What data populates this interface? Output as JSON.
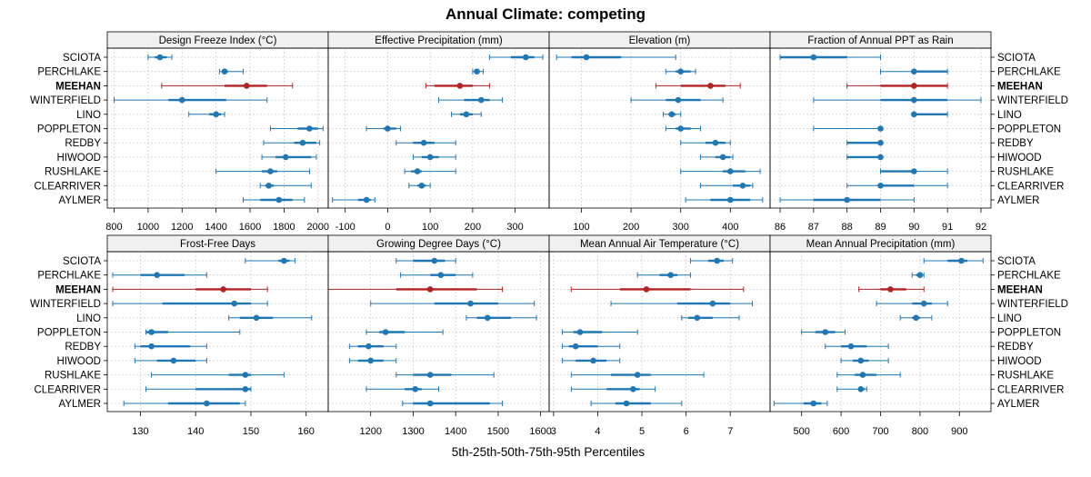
{
  "chart_data": {
    "type": "interval",
    "title": "Annual Climate: competing",
    "xlabel": "5th-25th-50th-75th-95th Percentiles",
    "sites": [
      "SCIOTA",
      "PERCHLAKE",
      "MEEHAN",
      "WINTERFIELD",
      "LINO",
      "POPPLETON",
      "REDBY",
      "HIWOOD",
      "RUSHLAKE",
      "CLEARRIVER",
      "AYLMER"
    ],
    "highlight_site": "MEEHAN",
    "colors": {
      "normal": "#1f77b4",
      "highlight": "#b22222"
    },
    "panels": [
      {
        "title": "Design Freeze Index (°C)",
        "xlim": [
          760,
          2060
        ],
        "ticks": [
          800,
          1000,
          1200,
          1400,
          1600,
          1800,
          2000
        ],
        "tick_labels": [
          "800",
          "1000",
          "1200",
          "1400",
          "1600",
          "1800",
          "2000"
        ],
        "stats": [
          [
            1000,
            1040,
            1070,
            1110,
            1140
          ],
          [
            1420,
            1435,
            1450,
            1470,
            1560
          ],
          [
            1080,
            1450,
            1580,
            1700,
            1850
          ],
          [
            800,
            1120,
            1200,
            1460,
            1700
          ],
          [
            1240,
            1360,
            1400,
            1430,
            1450
          ],
          [
            1720,
            1880,
            1950,
            2000,
            2030
          ],
          [
            1680,
            1860,
            1910,
            1990,
            2010
          ],
          [
            1670,
            1750,
            1810,
            1960,
            1990
          ],
          [
            1400,
            1670,
            1720,
            1760,
            1950
          ],
          [
            1660,
            1690,
            1710,
            1740,
            1960
          ],
          [
            1560,
            1660,
            1770,
            1850,
            1920
          ]
        ]
      },
      {
        "title": "Effective Precipitation (mm)",
        "xlim": [
          -140,
          380
        ],
        "ticks": [
          -100,
          0,
          100,
          200,
          300
        ],
        "tick_labels": [
          "-100",
          "0",
          "100",
          "200",
          "300"
        ],
        "stats": [
          [
            240,
            290,
            325,
            345,
            365
          ],
          [
            200,
            205,
            210,
            215,
            225
          ],
          [
            90,
            110,
            170,
            200,
            240
          ],
          [
            120,
            180,
            220,
            240,
            270
          ],
          [
            150,
            170,
            185,
            200,
            220
          ],
          [
            -50,
            -10,
            0,
            20,
            30
          ],
          [
            20,
            60,
            85,
            110,
            160
          ],
          [
            60,
            80,
            100,
            120,
            160
          ],
          [
            40,
            55,
            70,
            80,
            160
          ],
          [
            50,
            70,
            80,
            90,
            100
          ],
          [
            -130,
            -70,
            -50,
            -40,
            -30
          ]
        ]
      },
      {
        "title": "Elevation (m)",
        "xlim": [
          35,
          480
        ],
        "ticks": [
          100,
          200,
          300,
          400
        ],
        "tick_labels": [
          "100",
          "200",
          "300",
          "400"
        ],
        "stats": [
          [
            50,
            80,
            110,
            180,
            290
          ],
          [
            270,
            290,
            300,
            320,
            330
          ],
          [
            250,
            300,
            360,
            390,
            420
          ],
          [
            200,
            270,
            295,
            340,
            385
          ],
          [
            265,
            275,
            282,
            290,
            300
          ],
          [
            270,
            290,
            300,
            320,
            340
          ],
          [
            300,
            350,
            370,
            390,
            400
          ],
          [
            340,
            370,
            385,
            400,
            405
          ],
          [
            300,
            385,
            400,
            430,
            460
          ],
          [
            340,
            405,
            425,
            440,
            445
          ],
          [
            310,
            360,
            400,
            440,
            465
          ]
        ]
      },
      {
        "title": "Fraction of Annual PPT as Rain",
        "xlim": [
          85.7,
          92.3
        ],
        "ticks": [
          86,
          87,
          88,
          89,
          90,
          91,
          92
        ],
        "tick_labels": [
          "86",
          "87",
          "88",
          "89",
          "90",
          "91",
          "92"
        ],
        "stats": [
          [
            86,
            86,
            87,
            88,
            89
          ],
          [
            89,
            90,
            90,
            91,
            91
          ],
          [
            88,
            89,
            90,
            91,
            91
          ],
          [
            87,
            89,
            90,
            91,
            92
          ],
          [
            90,
            90,
            90,
            91,
            91
          ],
          [
            87,
            89,
            89,
            89,
            89
          ],
          [
            88,
            88,
            89,
            89,
            89
          ],
          [
            88,
            88,
            89,
            89,
            89
          ],
          [
            89,
            89,
            90,
            90,
            91
          ],
          [
            88,
            89,
            89,
            90,
            91
          ],
          [
            86,
            87,
            88,
            89,
            90
          ]
        ]
      },
      {
        "title": "Frost-Free Days",
        "xlim": [
          124,
          164
        ],
        "ticks": [
          130,
          140,
          150,
          160
        ],
        "tick_labels": [
          "130",
          "140",
          "150",
          "160"
        ],
        "stats": [
          [
            149,
            155,
            156,
            157,
            158
          ],
          [
            125,
            130,
            133,
            138,
            142
          ],
          [
            125,
            140,
            145,
            150,
            153
          ],
          [
            125,
            134,
            147,
            150,
            153
          ],
          [
            146,
            148,
            151,
            154,
            161
          ],
          [
            131,
            131,
            132,
            135,
            148
          ],
          [
            129,
            130,
            132,
            139,
            142
          ],
          [
            129,
            133,
            136,
            140,
            142
          ],
          [
            132,
            146,
            149,
            150,
            156
          ],
          [
            131,
            140,
            149,
            150,
            150
          ],
          [
            127,
            135,
            142,
            148,
            149
          ]
        ]
      },
      {
        "title": "Growing Degree Days (°C)",
        "xlim": [
          1100,
          1620
        ],
        "ticks": [
          1200,
          1300,
          1400,
          1500,
          1600
        ],
        "tick_labels": [
          "1200",
          "1300",
          "1400",
          "1500",
          "1600"
        ],
        "stats": [
          [
            1260,
            1300,
            1350,
            1375,
            1400
          ],
          [
            1270,
            1340,
            1365,
            1400,
            1440
          ],
          [
            1100,
            1260,
            1340,
            1450,
            1510
          ],
          [
            1200,
            1350,
            1435,
            1500,
            1585
          ],
          [
            1425,
            1450,
            1475,
            1530,
            1590
          ],
          [
            1190,
            1220,
            1235,
            1280,
            1370
          ],
          [
            1150,
            1170,
            1195,
            1230,
            1260
          ],
          [
            1150,
            1170,
            1200,
            1230,
            1260
          ],
          [
            1260,
            1300,
            1340,
            1390,
            1490
          ],
          [
            1190,
            1280,
            1305,
            1320,
            1360
          ],
          [
            1275,
            1300,
            1340,
            1480,
            1510
          ]
        ]
      },
      {
        "title": "Mean Annual Air Temperature (°C)",
        "xlim": [
          2.9,
          7.9
        ],
        "ticks": [
          3,
          4,
          5,
          6,
          7
        ],
        "tick_labels": [
          "3",
          "4",
          "5",
          "6",
          "7"
        ],
        "stats": [
          [
            6.1,
            6.5,
            6.7,
            6.85,
            7.05
          ],
          [
            4.9,
            5.4,
            5.65,
            5.8,
            6.1
          ],
          [
            3.4,
            4.5,
            5.1,
            6.1,
            7.3
          ],
          [
            4.3,
            5.8,
            6.6,
            7.0,
            7.5
          ],
          [
            5.9,
            6.05,
            6.25,
            6.6,
            7.2
          ],
          [
            3.2,
            3.45,
            3.6,
            4.1,
            4.9
          ],
          [
            3.2,
            3.35,
            3.5,
            4.0,
            4.5
          ],
          [
            3.2,
            3.5,
            3.9,
            4.2,
            4.5
          ],
          [
            3.4,
            4.3,
            4.9,
            5.2,
            6.4
          ],
          [
            3.4,
            4.2,
            4.8,
            4.95,
            5.3
          ],
          [
            3.85,
            4.4,
            4.65,
            5.2,
            5.9
          ]
        ]
      },
      {
        "title": "Mean Annual Precipitation (mm)",
        "xlim": [
          420,
          980
        ],
        "ticks": [
          500,
          600,
          700,
          800,
          900
        ],
        "tick_labels": [
          "500",
          "600",
          "700",
          "800",
          "900"
        ],
        "stats": [
          [
            810,
            870,
            905,
            920,
            960
          ],
          [
            780,
            790,
            800,
            805,
            810
          ],
          [
            645,
            700,
            725,
            765,
            810
          ],
          [
            690,
            780,
            810,
            830,
            870
          ],
          [
            750,
            780,
            790,
            800,
            830
          ],
          [
            500,
            535,
            560,
            585,
            610
          ],
          [
            560,
            600,
            625,
            665,
            720
          ],
          [
            600,
            630,
            650,
            670,
            720
          ],
          [
            590,
            635,
            655,
            690,
            750
          ],
          [
            590,
            645,
            650,
            660,
            665
          ],
          [
            430,
            505,
            530,
            550,
            565
          ]
        ]
      }
    ]
  }
}
